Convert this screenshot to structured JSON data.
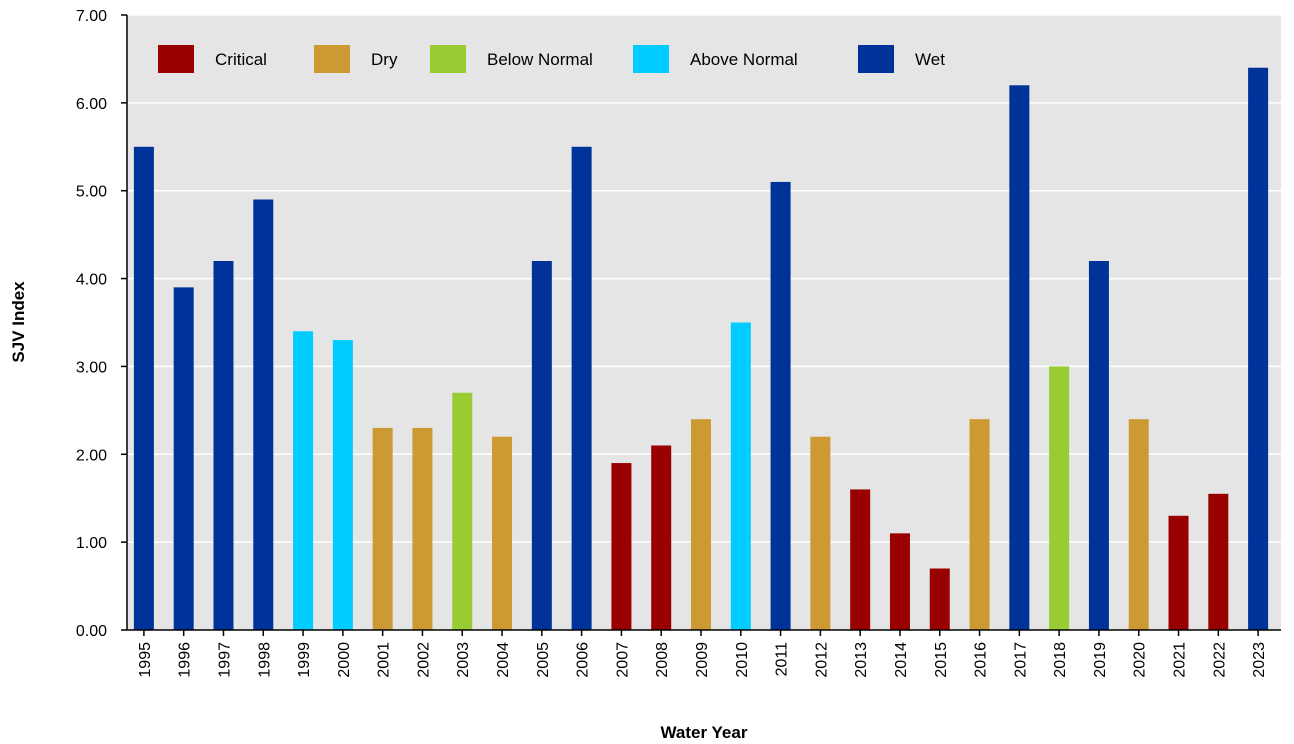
{
  "chart_data": {
    "type": "bar",
    "title": "",
    "xlabel": "Water Year",
    "ylabel": "SJV Index",
    "ylim": [
      0,
      7
    ],
    "yticks": [
      "0.00",
      "1.00",
      "2.00",
      "3.00",
      "4.00",
      "5.00",
      "6.00",
      "7.00"
    ],
    "grid": true,
    "legend_position": "top",
    "categories": [
      "1995",
      "1996",
      "1997",
      "1998",
      "1999",
      "2000",
      "2001",
      "2002",
      "2003",
      "2004",
      "2005",
      "2006",
      "2007",
      "2008",
      "2009",
      "2010",
      "2011",
      "2012",
      "2013",
      "2014",
      "2015",
      "2016",
      "2017",
      "2018",
      "2019",
      "2020",
      "2021",
      "2022",
      "2023"
    ],
    "values": [
      5.5,
      3.9,
      4.2,
      4.9,
      3.4,
      3.3,
      2.3,
      2.3,
      2.7,
      2.2,
      4.2,
      5.5,
      1.9,
      2.1,
      2.4,
      3.5,
      5.1,
      2.2,
      1.6,
      1.1,
      0.7,
      2.4,
      6.2,
      3.0,
      4.2,
      2.4,
      1.3,
      1.55,
      6.4
    ],
    "year_type": [
      "Wet",
      "Wet",
      "Wet",
      "Wet",
      "Above Normal",
      "Above Normal",
      "Dry",
      "Dry",
      "Below Normal",
      "Dry",
      "Wet",
      "Wet",
      "Critical",
      "Critical",
      "Dry",
      "Above Normal",
      "Wet",
      "Dry",
      "Critical",
      "Critical",
      "Critical",
      "Dry",
      "Wet",
      "Below Normal",
      "Wet",
      "Dry",
      "Critical",
      "Critical",
      "Wet"
    ],
    "legend": [
      {
        "name": "Critical",
        "color": "#990000"
      },
      {
        "name": "Dry",
        "color": "#CC9933"
      },
      {
        "name": "Below Normal",
        "color": "#99CC33"
      },
      {
        "name": "Above Normal",
        "color": "#00CCFF"
      },
      {
        "name": "Wet",
        "color": "#003399"
      }
    ],
    "plot_background": "#E5E5E5",
    "gridline_color": "#FFFFFF"
  }
}
